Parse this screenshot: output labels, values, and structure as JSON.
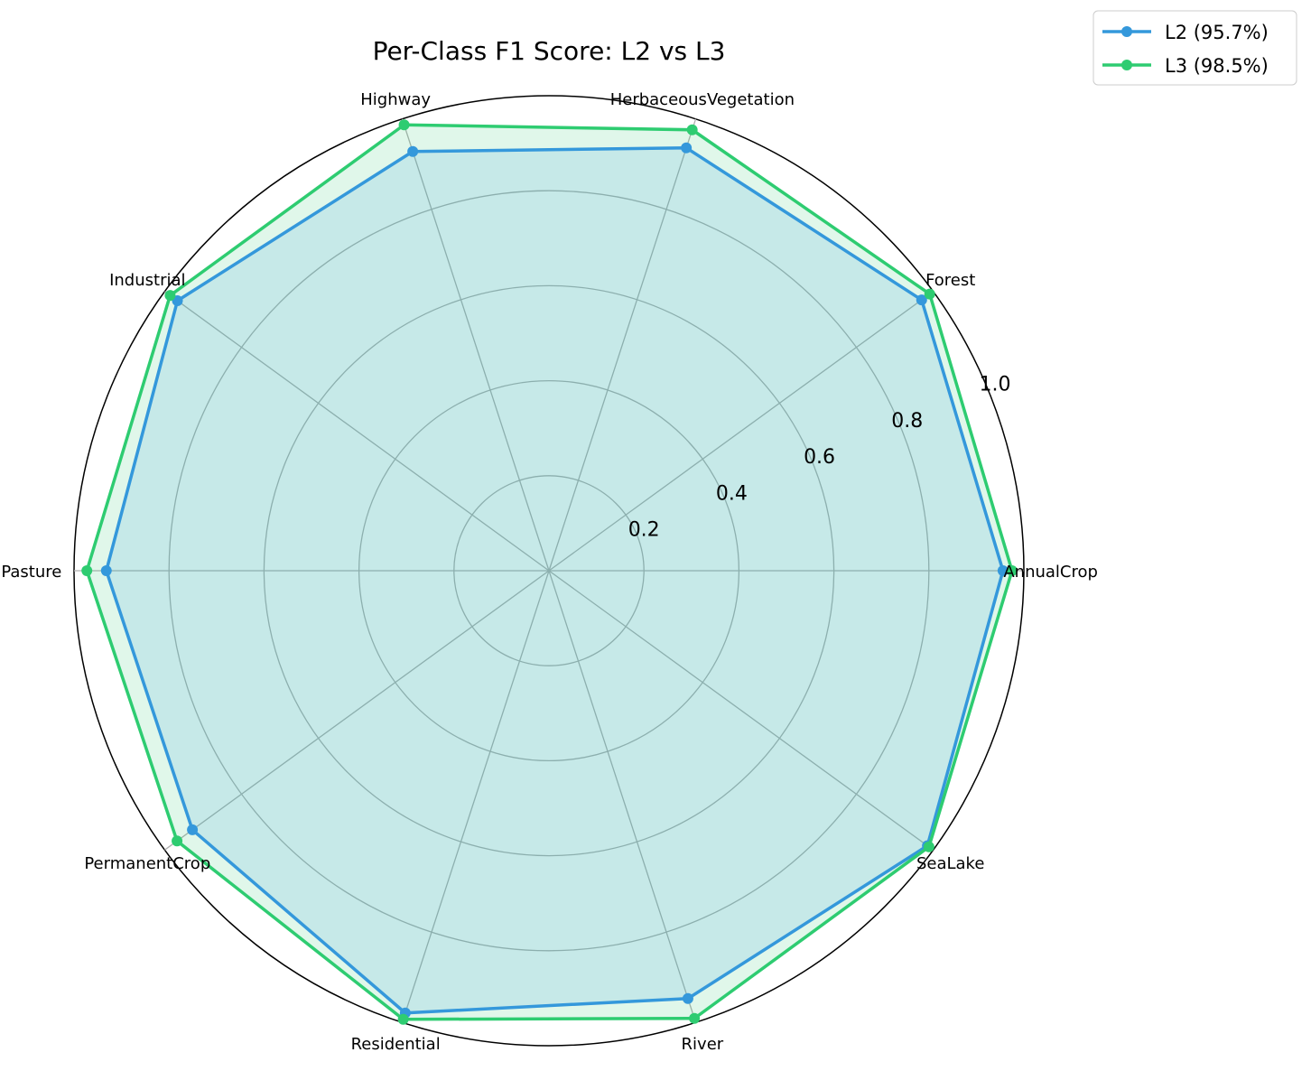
{
  "chart_data": {
    "type": "radar",
    "title": "Per-Class F1 Score: L2 vs L3",
    "categories": [
      "AnnualCrop",
      "Forest",
      "HerbaceousVegetation",
      "Highway",
      "Industrial",
      "Pasture",
      "PermanentCrop",
      "Residential",
      "River",
      "SeaLake"
    ],
    "rlim": [
      0,
      1.0
    ],
    "rticks": [
      "0.2",
      "0.4",
      "0.6",
      "0.8",
      "1.0"
    ],
    "grid": true,
    "legend_position": "top-right",
    "series": [
      {
        "name": "L2 (95.7%)",
        "color": "#3498db",
        "values": [
          0.956,
          0.97,
          0.936,
          0.928,
          0.967,
          0.932,
          0.928,
          0.979,
          0.947,
          0.985
        ]
      },
      {
        "name": "L3 (98.5%)",
        "color": "#2ecc71",
        "values": [
          0.975,
          0.991,
          0.976,
          0.987,
          0.986,
          0.973,
          0.968,
          0.993,
          0.991,
          0.989
        ]
      }
    ]
  }
}
